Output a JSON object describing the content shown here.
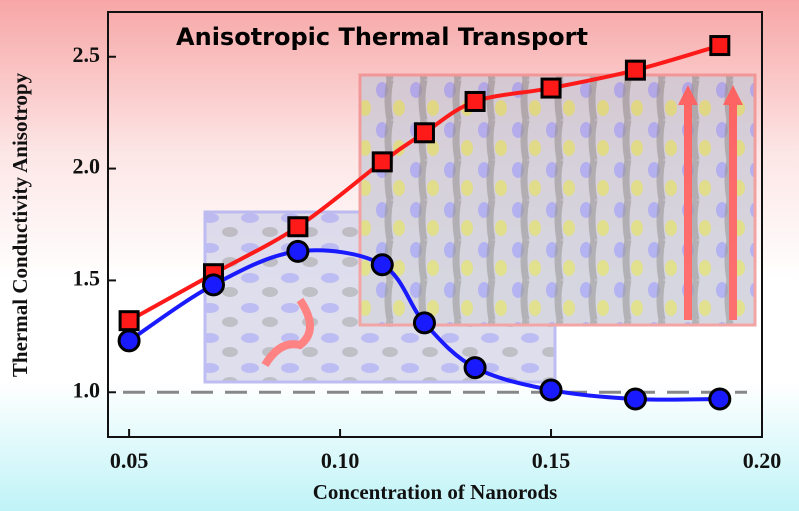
{
  "chart_data": {
    "type": "line",
    "title": "Anisotropic Thermal Transport",
    "x_label": "Concentration of Nanorods",
    "y_label": "Thermal Conductivity Anisotropy",
    "x": [
      0.05,
      0.07,
      0.09,
      0.11,
      0.12,
      0.132,
      0.15,
      0.17,
      0.19
    ],
    "series": [
      {
        "color": "#ff1a1a",
        "marker": "square",
        "values": [
          1.32,
          1.53,
          1.74,
          2.03,
          2.16,
          2.3,
          2.36,
          2.44,
          2.55
        ]
      },
      {
        "color": "#1a1aff",
        "marker": "circle",
        "values": [
          1.23,
          1.48,
          1.63,
          1.57,
          1.31,
          1.11,
          1.01,
          0.97,
          0.97
        ]
      }
    ],
    "reference_line": 1.0,
    "xlim": [
      0.045,
      0.2
    ],
    "ylim": [
      0.8,
      2.7
    ],
    "xticks": [
      0.05,
      {
        "value": 0.1,
        "label": "0.10"
      },
      0.15,
      {
        "value": 0.2,
        "label": "0.20"
      }
    ],
    "yticks": [
      {
        "value": 1,
        "label": "1.0"
      },
      1.5,
      {
        "value": 2,
        "label": "2.0"
      },
      2.5
    ]
  }
}
